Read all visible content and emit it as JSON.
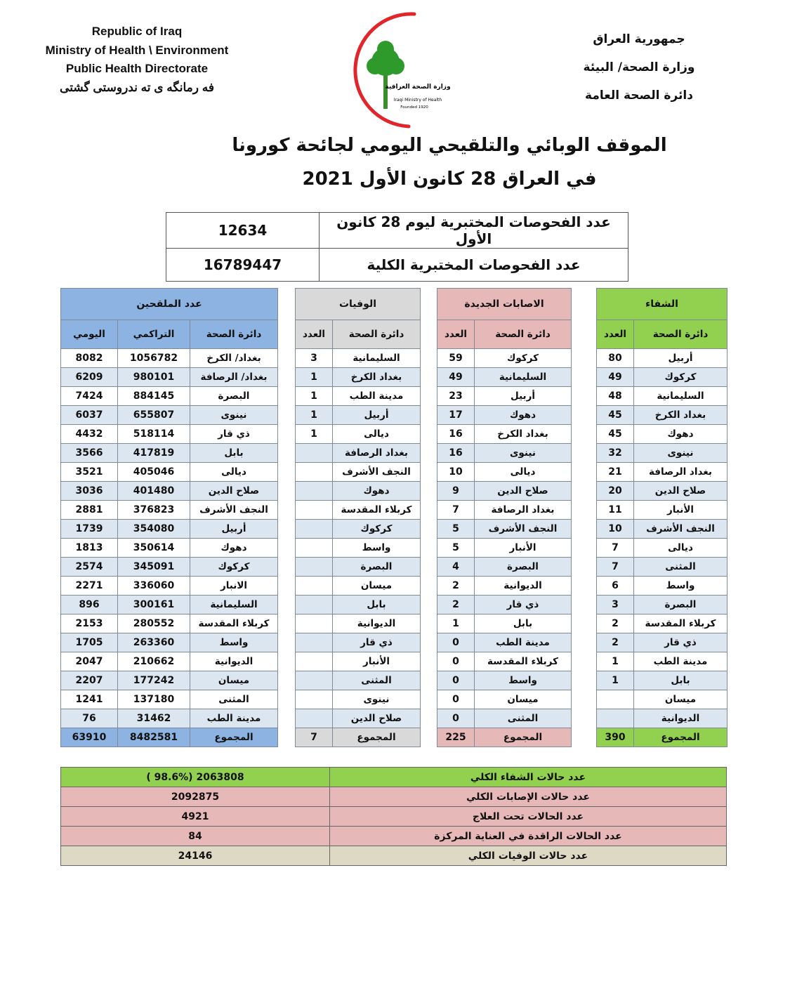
{
  "header": {
    "english": [
      "Republic of Iraq",
      "Ministry of Health \\ Environment",
      "Public Health Directorate"
    ],
    "kurdish": "فه رمانگه ی ته ندروستی گشتی",
    "arabic": [
      "جمهورية العراق",
      "وزارة الصحة/ البيئة",
      "دائرة الصحة العامة"
    ],
    "logo_text": [
      "وزارة الصحة العراقية",
      "Iraqi Ministry of Health",
      "Founded 1920"
    ]
  },
  "title": {
    "line1": "الموقف الوبائي والتلقيحي اليومي لجائحة كورونا",
    "line2": "في العراق  28  كانون الأول 2021"
  },
  "lab_tests": [
    {
      "label": "عدد الفحوصات المختبرية  ليوم 28 كانون الأول",
      "value": "12634"
    },
    {
      "label": "عدد الفحوصات المختبرية الكلية",
      "value": "16789447"
    }
  ],
  "colors": {
    "vaccinated": "#8db3e2",
    "deaths": "#d9d9d9",
    "new_cases": "#e6b8b7",
    "recovered": "#92d050",
    "row_alt": "#dce6f1",
    "total_deaths": "#ddd9c4"
  },
  "table": {
    "sections": {
      "vaccinated": "عدد الملقحين",
      "deaths": "الوفيات",
      "new_cases": "الاصابات الجديدة",
      "recovered": "الشفاء"
    },
    "columns": {
      "daily": "اليومي",
      "cumulative": "التراكمي",
      "department": "دائرة الصحة",
      "count": "العدد"
    },
    "rows": [
      {
        "vac_daily": "8082",
        "vac_cum": "1056782",
        "vac_dept": "بغداد/ الكرخ",
        "dth_count": "3",
        "dth_dept": "السليمانية",
        "cas_count": "59",
        "cas_dept": "كركوك",
        "rec_count": "80",
        "rec_dept": "أربيل"
      },
      {
        "vac_daily": "6209",
        "vac_cum": "980101",
        "vac_dept": "بغداد/ الرصافة",
        "dth_count": "1",
        "dth_dept": "بغداد الكرخ",
        "cas_count": "49",
        "cas_dept": "السليمانية",
        "rec_count": "49",
        "rec_dept": "كركوك"
      },
      {
        "vac_daily": "7424",
        "vac_cum": "884145",
        "vac_dept": "البصرة",
        "dth_count": "1",
        "dth_dept": "مدينة الطب",
        "cas_count": "23",
        "cas_dept": "أربيل",
        "rec_count": "48",
        "rec_dept": "السليمانية"
      },
      {
        "vac_daily": "6037",
        "vac_cum": "655807",
        "vac_dept": "نينوى",
        "dth_count": "1",
        "dth_dept": "أربيل",
        "cas_count": "17",
        "cas_dept": "دهوك",
        "rec_count": "45",
        "rec_dept": "بغداد الكرخ"
      },
      {
        "vac_daily": "4432",
        "vac_cum": "518114",
        "vac_dept": "ذي قار",
        "dth_count": "1",
        "dth_dept": "ديالى",
        "cas_count": "16",
        "cas_dept": "بغداد الكرخ",
        "rec_count": "45",
        "rec_dept": "دهوك"
      },
      {
        "vac_daily": "3566",
        "vac_cum": "417819",
        "vac_dept": "بابل",
        "dth_count": "",
        "dth_dept": "بغداد الرصافة",
        "cas_count": "16",
        "cas_dept": "نينوى",
        "rec_count": "32",
        "rec_dept": "نينوى"
      },
      {
        "vac_daily": "3521",
        "vac_cum": "405046",
        "vac_dept": "ديالى",
        "dth_count": "",
        "dth_dept": "النجف الأشرف",
        "cas_count": "10",
        "cas_dept": "ديالى",
        "rec_count": "21",
        "rec_dept": "بغداد الرصافة"
      },
      {
        "vac_daily": "3036",
        "vac_cum": "401480",
        "vac_dept": "صلاح الدين",
        "dth_count": "",
        "dth_dept": "دهوك",
        "cas_count": "9",
        "cas_dept": "صلاح الدين",
        "rec_count": "20",
        "rec_dept": "صلاح الدين"
      },
      {
        "vac_daily": "2881",
        "vac_cum": "376823",
        "vac_dept": "النجف الأشرف",
        "dth_count": "",
        "dth_dept": "كربلاء المقدسة",
        "cas_count": "7",
        "cas_dept": "بغداد الرصافة",
        "rec_count": "11",
        "rec_dept": "الأنبار"
      },
      {
        "vac_daily": "1739",
        "vac_cum": "354080",
        "vac_dept": "أربيل",
        "dth_count": "",
        "dth_dept": "كركوك",
        "cas_count": "5",
        "cas_dept": "النجف الأشرف",
        "rec_count": "10",
        "rec_dept": "النجف الأشرف"
      },
      {
        "vac_daily": "1813",
        "vac_cum": "350614",
        "vac_dept": "دهوك",
        "dth_count": "",
        "dth_dept": "واسط",
        "cas_count": "5",
        "cas_dept": "الأنبار",
        "rec_count": "7",
        "rec_dept": "ديالى"
      },
      {
        "vac_daily": "2574",
        "vac_cum": "345091",
        "vac_dept": "كركوك",
        "dth_count": "",
        "dth_dept": "البصرة",
        "cas_count": "4",
        "cas_dept": "البصرة",
        "rec_count": "7",
        "rec_dept": "المثنى"
      },
      {
        "vac_daily": "2271",
        "vac_cum": "336060",
        "vac_dept": "الانبار",
        "dth_count": "",
        "dth_dept": "ميسان",
        "cas_count": "2",
        "cas_dept": "الديوانية",
        "rec_count": "6",
        "rec_dept": "واسط"
      },
      {
        "vac_daily": "896",
        "vac_cum": "300161",
        "vac_dept": "السليمانية",
        "dth_count": "",
        "dth_dept": "بابل",
        "cas_count": "2",
        "cas_dept": "ذي قار",
        "rec_count": "3",
        "rec_dept": "البصرة"
      },
      {
        "vac_daily": "2153",
        "vac_cum": "280552",
        "vac_dept": "كربلاء المقدسة",
        "dth_count": "",
        "dth_dept": "الديوانية",
        "cas_count": "1",
        "cas_dept": "بابل",
        "rec_count": "2",
        "rec_dept": "كربلاء المقدسة"
      },
      {
        "vac_daily": "1705",
        "vac_cum": "263360",
        "vac_dept": "واسط",
        "dth_count": "",
        "dth_dept": "ذي قار",
        "cas_count": "0",
        "cas_dept": "مدينة الطب",
        "rec_count": "2",
        "rec_dept": "ذي قار"
      },
      {
        "vac_daily": "2047",
        "vac_cum": "210662",
        "vac_dept": "الديوانية",
        "dth_count": "",
        "dth_dept": "الأنبار",
        "cas_count": "0",
        "cas_dept": "كربلاء المقدسة",
        "rec_count": "1",
        "rec_dept": "مدينة الطب"
      },
      {
        "vac_daily": "2207",
        "vac_cum": "177242",
        "vac_dept": "ميسان",
        "dth_count": "",
        "dth_dept": "المثنى",
        "cas_count": "0",
        "cas_dept": "واسط",
        "rec_count": "1",
        "rec_dept": "بابل"
      },
      {
        "vac_daily": "1241",
        "vac_cum": "137180",
        "vac_dept": "المثنى",
        "dth_count": "",
        "dth_dept": "نينوى",
        "cas_count": "0",
        "cas_dept": "ميسان",
        "rec_count": "",
        "rec_dept": "ميسان"
      },
      {
        "vac_daily": "76",
        "vac_cum": "31462",
        "vac_dept": "مدينة الطب",
        "dth_count": "",
        "dth_dept": "صلاح الدين",
        "cas_count": "0",
        "cas_dept": "المثنى",
        "rec_count": "",
        "rec_dept": "الديوانية"
      }
    ],
    "totals": {
      "vac_daily": "63910",
      "vac_cum": "8482581",
      "vac_dept": "المجموع",
      "dth_count": "7",
      "dth_dept": "المجموع",
      "cas_count": "225",
      "cas_dept": "المجموع",
      "rec_count": "390",
      "rec_dept": "المجموع"
    }
  },
  "summary": [
    {
      "label": "عدد حالات الشفاء الكلي",
      "value": "( 98.6%)  2063808",
      "color": "#92d050"
    },
    {
      "label": "عدد حالات الإصابات الكلي",
      "value": "2092875",
      "color": "#e6b8b7"
    },
    {
      "label": "عدد الحالات تحت العلاج",
      "value": "4921",
      "color": "#e6b8b7"
    },
    {
      "label": "عدد الحالات الراقدة في العناية المركزة",
      "value": "84",
      "color": "#e6b8b7"
    },
    {
      "label": "عدد حالات الوفيات الكلي",
      "value": "24146",
      "color": "#ddd9c4"
    }
  ]
}
